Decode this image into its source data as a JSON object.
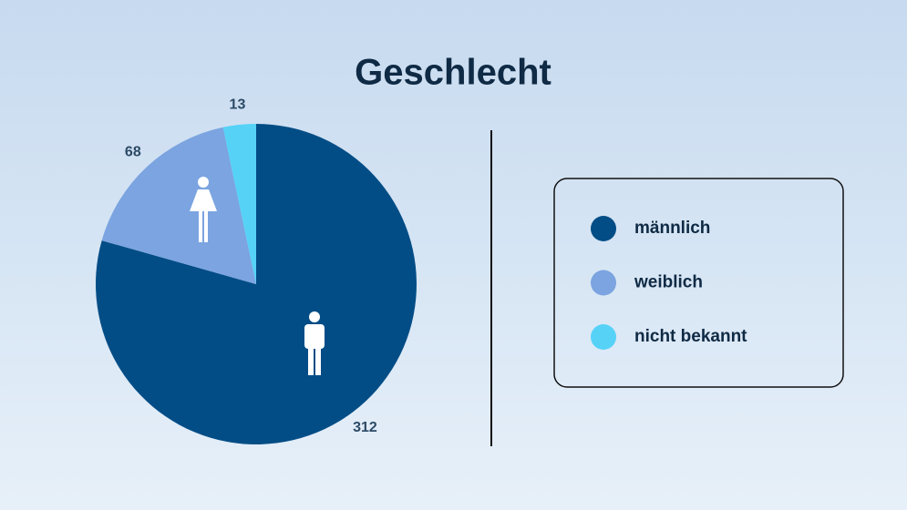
{
  "chart_data": {
    "type": "pie",
    "title": "Geschlecht",
    "categories": [
      "männlich",
      "weiblich",
      "nicht bekannt"
    ],
    "values": [
      312,
      68,
      13
    ],
    "colors": [
      "#034d86",
      "#7ba4e0",
      "#56d2f7"
    ]
  }
}
